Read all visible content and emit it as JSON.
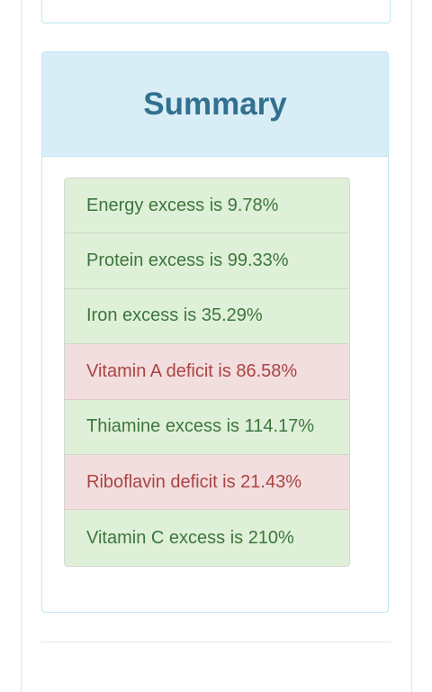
{
  "summary": {
    "title": "Summary",
    "items": [
      {
        "text": "Energy excess is 9.78%",
        "status": "success"
      },
      {
        "text": "Protein excess is 99.33%",
        "status": "success"
      },
      {
        "text": "Iron excess is 35.29%",
        "status": "success"
      },
      {
        "text": "Vitamin A deficit is 86.58%",
        "status": "danger"
      },
      {
        "text": "Thiamine excess is 114.17%",
        "status": "success"
      },
      {
        "text": "Riboflavin deficit is 21.43%",
        "status": "danger"
      },
      {
        "text": "Vitamin C excess is 210%",
        "status": "success"
      }
    ]
  },
  "colors": {
    "success_bg": "#dff0d8",
    "success_text": "#3c763d",
    "danger_bg": "#f2dede",
    "danger_text": "#a94442",
    "heading_bg": "#d9edf7",
    "heading_text": "#31708f"
  }
}
